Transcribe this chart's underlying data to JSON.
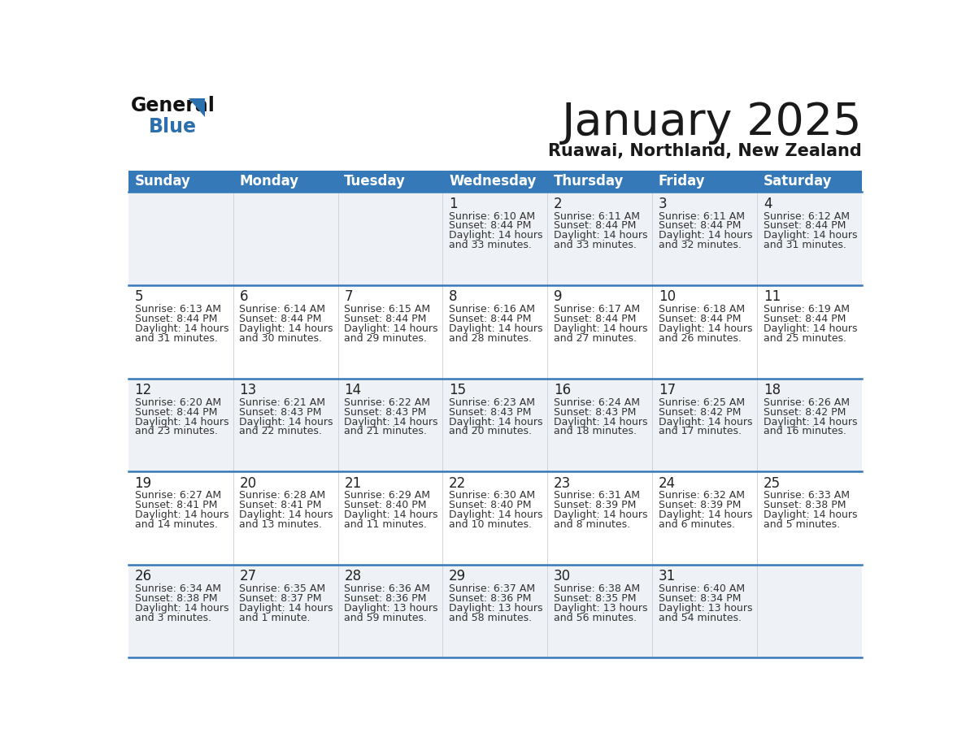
{
  "title": "January 2025",
  "subtitle": "Ruawai, Northland, New Zealand",
  "header_color": "#3579b8",
  "header_text_color": "#ffffff",
  "title_color": "#1a1a1a",
  "subtitle_color": "#1a1a1a",
  "bg_color": "#ffffff",
  "cell_bg_light": "#eef1f5",
  "cell_bg_white": "#ffffff",
  "days_of_week": [
    "Sunday",
    "Monday",
    "Tuesday",
    "Wednesday",
    "Thursday",
    "Friday",
    "Saturday"
  ],
  "calendar": [
    [
      {
        "day": "",
        "sunrise": "",
        "sunset": "",
        "daylight": ""
      },
      {
        "day": "",
        "sunrise": "",
        "sunset": "",
        "daylight": ""
      },
      {
        "day": "",
        "sunrise": "",
        "sunset": "",
        "daylight": ""
      },
      {
        "day": "1",
        "sunrise": "6:10 AM",
        "sunset": "8:44 PM",
        "daylight": "14 hours",
        "daylight2": "and 33 minutes."
      },
      {
        "day": "2",
        "sunrise": "6:11 AM",
        "sunset": "8:44 PM",
        "daylight": "14 hours",
        "daylight2": "and 33 minutes."
      },
      {
        "day": "3",
        "sunrise": "6:11 AM",
        "sunset": "8:44 PM",
        "daylight": "14 hours",
        "daylight2": "and 32 minutes."
      },
      {
        "day": "4",
        "sunrise": "6:12 AM",
        "sunset": "8:44 PM",
        "daylight": "14 hours",
        "daylight2": "and 31 minutes."
      }
    ],
    [
      {
        "day": "5",
        "sunrise": "6:13 AM",
        "sunset": "8:44 PM",
        "daylight": "14 hours",
        "daylight2": "and 31 minutes."
      },
      {
        "day": "6",
        "sunrise": "6:14 AM",
        "sunset": "8:44 PM",
        "daylight": "14 hours",
        "daylight2": "and 30 minutes."
      },
      {
        "day": "7",
        "sunrise": "6:15 AM",
        "sunset": "8:44 PM",
        "daylight": "14 hours",
        "daylight2": "and 29 minutes."
      },
      {
        "day": "8",
        "sunrise": "6:16 AM",
        "sunset": "8:44 PM",
        "daylight": "14 hours",
        "daylight2": "and 28 minutes."
      },
      {
        "day": "9",
        "sunrise": "6:17 AM",
        "sunset": "8:44 PM",
        "daylight": "14 hours",
        "daylight2": "and 27 minutes."
      },
      {
        "day": "10",
        "sunrise": "6:18 AM",
        "sunset": "8:44 PM",
        "daylight": "14 hours",
        "daylight2": "and 26 minutes."
      },
      {
        "day": "11",
        "sunrise": "6:19 AM",
        "sunset": "8:44 PM",
        "daylight": "14 hours",
        "daylight2": "and 25 minutes."
      }
    ],
    [
      {
        "day": "12",
        "sunrise": "6:20 AM",
        "sunset": "8:44 PM",
        "daylight": "14 hours",
        "daylight2": "and 23 minutes."
      },
      {
        "day": "13",
        "sunrise": "6:21 AM",
        "sunset": "8:43 PM",
        "daylight": "14 hours",
        "daylight2": "and 22 minutes."
      },
      {
        "day": "14",
        "sunrise": "6:22 AM",
        "sunset": "8:43 PM",
        "daylight": "14 hours",
        "daylight2": "and 21 minutes."
      },
      {
        "day": "15",
        "sunrise": "6:23 AM",
        "sunset": "8:43 PM",
        "daylight": "14 hours",
        "daylight2": "and 20 minutes."
      },
      {
        "day": "16",
        "sunrise": "6:24 AM",
        "sunset": "8:43 PM",
        "daylight": "14 hours",
        "daylight2": "and 18 minutes."
      },
      {
        "day": "17",
        "sunrise": "6:25 AM",
        "sunset": "8:42 PM",
        "daylight": "14 hours",
        "daylight2": "and 17 minutes."
      },
      {
        "day": "18",
        "sunrise": "6:26 AM",
        "sunset": "8:42 PM",
        "daylight": "14 hours",
        "daylight2": "and 16 minutes."
      }
    ],
    [
      {
        "day": "19",
        "sunrise": "6:27 AM",
        "sunset": "8:41 PM",
        "daylight": "14 hours",
        "daylight2": "and 14 minutes."
      },
      {
        "day": "20",
        "sunrise": "6:28 AM",
        "sunset": "8:41 PM",
        "daylight": "14 hours",
        "daylight2": "and 13 minutes."
      },
      {
        "day": "21",
        "sunrise": "6:29 AM",
        "sunset": "8:40 PM",
        "daylight": "14 hours",
        "daylight2": "and 11 minutes."
      },
      {
        "day": "22",
        "sunrise": "6:30 AM",
        "sunset": "8:40 PM",
        "daylight": "14 hours",
        "daylight2": "and 10 minutes."
      },
      {
        "day": "23",
        "sunrise": "6:31 AM",
        "sunset": "8:39 PM",
        "daylight": "14 hours",
        "daylight2": "and 8 minutes."
      },
      {
        "day": "24",
        "sunrise": "6:32 AM",
        "sunset": "8:39 PM",
        "daylight": "14 hours",
        "daylight2": "and 6 minutes."
      },
      {
        "day": "25",
        "sunrise": "6:33 AM",
        "sunset": "8:38 PM",
        "daylight": "14 hours",
        "daylight2": "and 5 minutes."
      }
    ],
    [
      {
        "day": "26",
        "sunrise": "6:34 AM",
        "sunset": "8:38 PM",
        "daylight": "14 hours",
        "daylight2": "and 3 minutes."
      },
      {
        "day": "27",
        "sunrise": "6:35 AM",
        "sunset": "8:37 PM",
        "daylight": "14 hours",
        "daylight2": "and 1 minute."
      },
      {
        "day": "28",
        "sunrise": "6:36 AM",
        "sunset": "8:36 PM",
        "daylight": "13 hours",
        "daylight2": "and 59 minutes."
      },
      {
        "day": "29",
        "sunrise": "6:37 AM",
        "sunset": "8:36 PM",
        "daylight": "13 hours",
        "daylight2": "and 58 minutes."
      },
      {
        "day": "30",
        "sunrise": "6:38 AM",
        "sunset": "8:35 PM",
        "daylight": "13 hours",
        "daylight2": "and 56 minutes."
      },
      {
        "day": "31",
        "sunrise": "6:40 AM",
        "sunset": "8:34 PM",
        "daylight": "13 hours",
        "daylight2": "and 54 minutes."
      },
      {
        "day": "",
        "sunrise": "",
        "sunset": "",
        "daylight": "",
        "daylight2": ""
      }
    ]
  ]
}
